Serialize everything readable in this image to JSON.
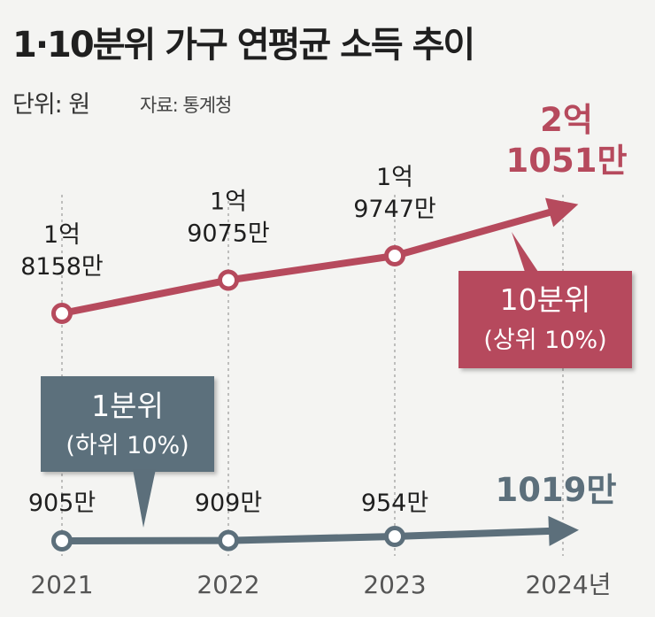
{
  "title": "1·10분위 가구 연평균 소득 추이",
  "unit_label": "단위: 원",
  "source_label": "자료: 통계청",
  "colors": {
    "top": "#b64a5d",
    "bottom": "#5c6f7b",
    "background": "#f4f4f2"
  },
  "chart_data": {
    "type": "line",
    "title": "1·10분위 가구 연평균 소득 추이",
    "unit": "원",
    "x": [
      "2021",
      "2022",
      "2023",
      "2024"
    ],
    "x_labels": [
      "2021",
      "2022",
      "2023",
      "2024년"
    ],
    "series": [
      {
        "name": "10분위",
        "box_title": "10분위",
        "box_subtitle": "(상위 10%)",
        "values": [
          181580000,
          190750000,
          197470000,
          210510000
        ],
        "value_labels": [
          [
            "1억",
            "8158만"
          ],
          [
            "1억",
            "9075만"
          ],
          [
            "1억",
            "9747만"
          ],
          [
            "2억",
            "1051만"
          ]
        ]
      },
      {
        "name": "1분위",
        "box_title": "1분위",
        "box_subtitle": "(하위 10%)",
        "values": [
          9050000,
          9090000,
          9540000,
          10190000
        ],
        "value_labels": [
          [
            "905만"
          ],
          [
            "909만"
          ],
          [
            "954만"
          ],
          [
            "1019만"
          ]
        ]
      }
    ]
  }
}
